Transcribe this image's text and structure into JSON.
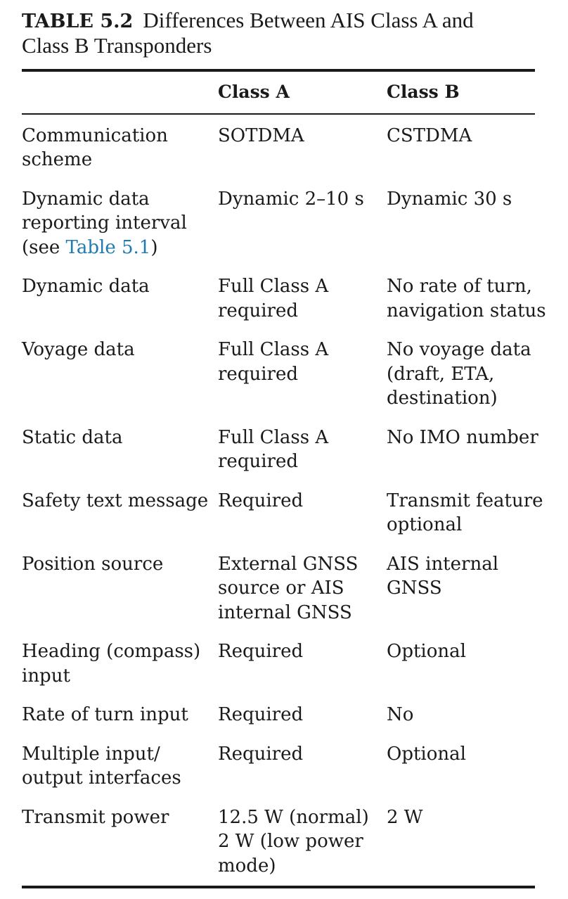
{
  "caption": {
    "number": "TABLE 5.2",
    "title_line1": "Differences Between AIS Class A and",
    "title_line2": "Class B Transponders"
  },
  "table": {
    "headers": [
      "",
      "Class A",
      "Class B"
    ],
    "rows": [
      {
        "feature": [
          "Communication",
          "scheme"
        ],
        "class_a": [
          "SOTDMA"
        ],
        "class_b": [
          "CSTDMA"
        ]
      },
      {
        "feature": [
          "Dynamic data",
          "reporting interval"
        ],
        "feature_ref_prefix": "(see ",
        "feature_ref_link": "Table 5.1",
        "feature_ref_suffix": ")",
        "class_a": [
          "Dynamic 2–10 s"
        ],
        "class_b": [
          "Dynamic 30 s"
        ]
      },
      {
        "feature": [
          "Dynamic data"
        ],
        "class_a": [
          "Full Class A",
          "required"
        ],
        "class_b": [
          "No rate of turn,",
          "navigation status"
        ]
      },
      {
        "feature": [
          "Voyage data"
        ],
        "class_a": [
          "Full Class A",
          "required"
        ],
        "class_b": [
          "No voyage data",
          "(draft, ETA,",
          "destination)"
        ]
      },
      {
        "feature": [
          "Static data"
        ],
        "class_a": [
          "Full Class A",
          "required"
        ],
        "class_b": [
          "No IMO number"
        ]
      },
      {
        "feature": [
          "Safety text message"
        ],
        "class_a": [
          "Required"
        ],
        "class_b": [
          "Transmit feature",
          "optional"
        ]
      },
      {
        "feature": [
          "Position source"
        ],
        "class_a": [
          "External GNSS",
          "source or AIS",
          "internal GNSS"
        ],
        "class_b": [
          "AIS internal",
          "GNSS"
        ]
      },
      {
        "feature": [
          "Heading (compass)",
          "input"
        ],
        "class_a": [
          "Required"
        ],
        "class_b": [
          "Optional"
        ]
      },
      {
        "feature": [
          "Rate of turn input"
        ],
        "class_a": [
          "Required"
        ],
        "class_b": [
          "No"
        ]
      },
      {
        "feature": [
          "Multiple input/",
          "output interfaces"
        ],
        "class_a": [
          "Required"
        ],
        "class_b": [
          "Optional"
        ]
      },
      {
        "feature": [
          "Transmit power"
        ],
        "class_a": [
          "12.5 W (normal)",
          "2 W (low power",
          "mode)"
        ],
        "class_b": [
          "2 W"
        ]
      }
    ]
  },
  "colors": {
    "text": "#1a1a1a",
    "link": "#1f7bb0",
    "background": "#ffffff"
  }
}
